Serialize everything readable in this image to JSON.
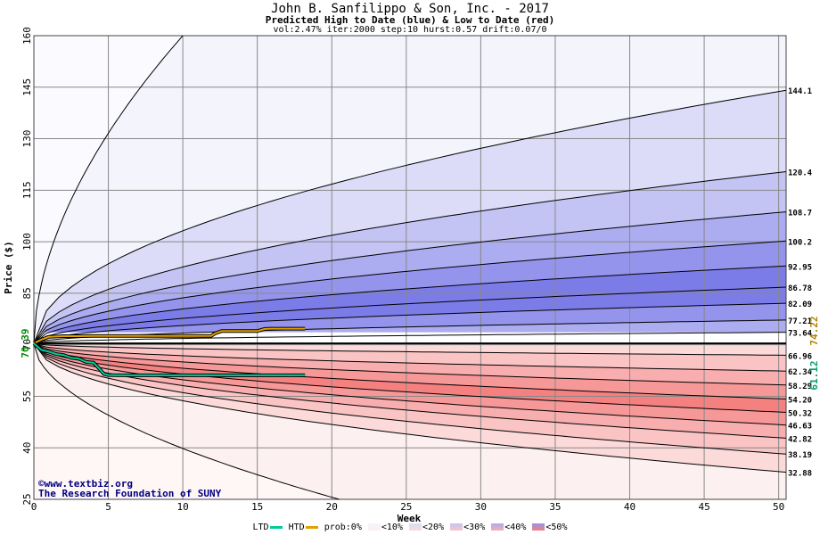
{
  "header": {
    "title": "John B. Sanfilippo & Son, Inc. - 2017",
    "subtitle": "Predicted High to Date (blue) &  Low to Date (red)",
    "params": "vol:2.47% iter:2000 step:10 hurst:0.57 drift:0.07/0"
  },
  "watermark": {
    "site": "www.textbiz.org",
    "org": "The Research Foundation of SUNY",
    "copyright_symbol": "©"
  },
  "legend": {
    "ltd_label": "LTD",
    "htd_label": "HTD",
    "prob_label": "prob:0%",
    "bins": [
      "<10%",
      "<20%",
      "<30%",
      "<40%",
      "<50%"
    ],
    "ltd_color": "#00cc99",
    "htd_color": "#e0a000"
  },
  "colors": {
    "blue_bands": [
      "#f4f4fd",
      "#dcdcf8",
      "#c4c4f4",
      "#acacf0",
      "#9494ec",
      "#7c7ce8"
    ],
    "red_bands": [
      "#fdf0f0",
      "#fcdada",
      "#fac4c4",
      "#f8aeae",
      "#f69898",
      "#f48080"
    ],
    "grid": "#888888",
    "ltd_line": "#00cc99",
    "htd_line": "#e0a000"
  },
  "chart_data": {
    "type": "line",
    "title": "John B. Sanfilippo & Son, Inc. - 2017",
    "xlabel": "Week",
    "ylabel": "Price ($)",
    "xlim": [
      0,
      50.5
    ],
    "ylim": [
      25,
      160
    ],
    "x_ticks": [
      0,
      5,
      10,
      15,
      20,
      25,
      30,
      35,
      40,
      45,
      50
    ],
    "y_ticks": [
      25,
      40,
      55,
      70,
      85,
      100,
      115,
      130,
      145,
      160
    ],
    "start_price": 70.39,
    "start_label": "70.39",
    "current_high": 74.22,
    "current_high_label": "74.22",
    "current_low": 61.12,
    "current_low_label": "61.12",
    "high_curves": [
      {
        "end_value": 144.1,
        "label": "144.1"
      },
      {
        "end_value": 120.4,
        "label": "120.4"
      },
      {
        "end_value": 108.7,
        "label": "108.7"
      },
      {
        "end_value": 100.2,
        "label": "100.2"
      },
      {
        "end_value": 92.95,
        "label": "92.95"
      },
      {
        "end_value": 86.78,
        "label": "86.78"
      },
      {
        "end_value": 82.09,
        "label": "82.09"
      },
      {
        "end_value": 77.21,
        "label": "77.21"
      },
      {
        "end_value": 73.64,
        "label": "73.64"
      }
    ],
    "low_curves": [
      {
        "end_value": 66.96,
        "label": "66.96"
      },
      {
        "end_value": 62.34,
        "label": "62.34"
      },
      {
        "end_value": 58.29,
        "label": "58.29"
      },
      {
        "end_value": 54.2,
        "label": "54.20"
      },
      {
        "end_value": 50.32,
        "label": "50.32"
      },
      {
        "end_value": 46.63,
        "label": "46.63"
      },
      {
        "end_value": 42.82,
        "label": "42.82"
      },
      {
        "end_value": 38.19,
        "label": "38.19"
      },
      {
        "end_value": 32.88,
        "label": "32.88"
      }
    ],
    "outer_high": {
      "end_week": 10,
      "end_value": 160
    },
    "outer_low": {
      "end_week": 20.5,
      "end_value": 25
    },
    "htd_series": {
      "name": "HTD",
      "x": [
        0,
        0.5,
        1,
        2,
        3,
        4,
        5,
        6,
        7,
        8,
        9,
        10,
        11,
        11.9,
        12.2,
        12.6,
        13,
        14,
        15,
        15.5,
        16,
        17,
        18.2
      ],
      "y": [
        70.39,
        71.5,
        72.3,
        72.5,
        72.5,
        72.6,
        72.6,
        72.6,
        72.6,
        72.6,
        72.6,
        72.6,
        72.6,
        72.6,
        73.4,
        74.0,
        74.0,
        74.0,
        74.0,
        74.6,
        74.7,
        74.7,
        74.7
      ]
    },
    "ltd_series": {
      "name": "LTD",
      "x": [
        0,
        0.5,
        1,
        1.5,
        2,
        2.5,
        3,
        3.5,
        4,
        4.4,
        4.7,
        5,
        6,
        8,
        10,
        12,
        14,
        16,
        18.2
      ],
      "y": [
        70.39,
        68.5,
        68.0,
        67.3,
        67.0,
        66.2,
        66.0,
        65.0,
        64.8,
        63.0,
        61.5,
        61.2,
        61.1,
        61.1,
        61.1,
        61.1,
        61.1,
        61.1,
        61.1
      ]
    }
  }
}
